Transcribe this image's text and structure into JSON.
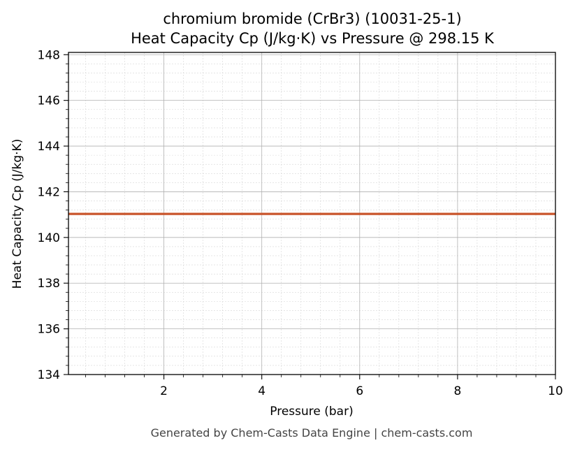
{
  "chart_data": {
    "type": "line",
    "title": "chromium bromide (CrBr3) (10031-25-1)",
    "subtitle": "Heat Capacity Cp (J/kg·K) vs Pressure @ 298.15 K",
    "xlabel": "Pressure (bar)",
    "ylabel": "Heat Capacity Cp (J/kg·K)",
    "xlim": [
      0.05,
      10
    ],
    "ylim": [
      134,
      148.1
    ],
    "xticks": [
      2,
      4,
      6,
      8,
      10
    ],
    "yticks": [
      134,
      136,
      138,
      140,
      142,
      144,
      146,
      148
    ],
    "grid": true,
    "series": [
      {
        "color": "#c8542a",
        "x": [
          0.05,
          1,
          2,
          3,
          4,
          5,
          6,
          7,
          8,
          9,
          10
        ],
        "y": [
          141.03,
          141.03,
          141.03,
          141.03,
          141.03,
          141.03,
          141.03,
          141.03,
          141.03,
          141.03,
          141.03
        ]
      }
    ]
  },
  "footer": "Generated by Chem-Casts Data Engine | chem-casts.com"
}
